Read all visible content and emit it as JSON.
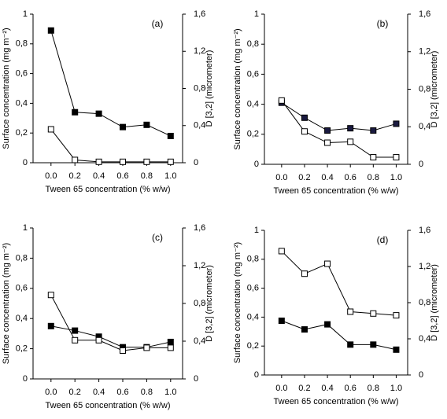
{
  "chart_data": [
    {
      "type": "line",
      "label": "(a)",
      "xlabel": "Tween 65 concentration (% w/w)",
      "ylabel": "Surface concentration (mg m⁻²)",
      "y2label": "D [3,2] (micrometer)",
      "x": [
        0,
        0.2,
        0.4,
        0.6,
        0.8,
        1
      ],
      "series": [
        {
          "color": "#000000",
          "marker_fill": "#000000",
          "axis": "y",
          "values": [
            0.89,
            0.34,
            0.33,
            0.24,
            0.255,
            0.18
          ]
        },
        {
          "color": "#000000",
          "marker_fill": "#ffffff",
          "axis": "y2",
          "values": [
            0.36,
            0.03,
            0.01,
            0.01,
            0.01,
            0.01
          ]
        }
      ],
      "xlim": [
        -0.15,
        1.1
      ],
      "xticks": [
        {
          "value": 0,
          "label": "0.0"
        },
        0.2,
        0.4,
        0.6,
        0.8,
        {
          "value": 1,
          "label": "1.0"
        }
      ],
      "ylim": [
        0,
        1
      ],
      "yticks": [
        0,
        {
          "value": 0.2,
          "label": "0,2"
        },
        {
          "value": 0.4,
          "label": "0,4"
        },
        {
          "value": 0.6,
          "label": "0,6"
        },
        {
          "value": 0.8,
          "label": "0,8"
        },
        1
      ],
      "y2lim": [
        0,
        1.6
      ],
      "y2ticks": [
        0,
        {
          "value": 0.4,
          "label": "0,4"
        },
        {
          "value": 0.8,
          "label": "0,8"
        },
        {
          "value": 1.2,
          "label": "1,2"
        },
        {
          "value": 1.6,
          "label": "1,6"
        }
      ]
    },
    {
      "type": "line",
      "label": "(b)",
      "xlabel": "Tween 65 concentration (% w/w)",
      "ylabel": "Surface concentration (mg m⁻²)",
      "y2label": "D [3,2] (micrometer)",
      "x": [
        0,
        0.2,
        0.4,
        0.6,
        0.8,
        1
      ],
      "series": [
        {
          "color": "#000000",
          "marker_fill": "#1a1a40",
          "axis": "y",
          "values": [
            0.41,
            0.31,
            0.225,
            0.24,
            0.225,
            0.27
          ]
        },
        {
          "color": "#000000",
          "marker_fill": "#ffffff",
          "axis": "y2",
          "values": [
            0.68,
            0.35,
            0.23,
            0.24,
            0.075,
            0.075
          ]
        }
      ],
      "xlim": [
        -0.15,
        1.1
      ],
      "xticks": [
        {
          "value": 0,
          "label": "0.0"
        },
        0.2,
        0.4,
        0.6,
        0.8,
        {
          "value": 1,
          "label": "1.0"
        }
      ],
      "ylim": [
        0,
        1
      ],
      "yticks": [
        0,
        {
          "value": 0.2,
          "label": "0,2"
        },
        {
          "value": 0.4,
          "label": "0,4"
        },
        {
          "value": 0.6,
          "label": "0,6"
        },
        {
          "value": 0.8,
          "label": "0,8"
        },
        1
      ],
      "y2lim": [
        0,
        1.6
      ],
      "y2ticks": [
        0,
        {
          "value": 0.4,
          "label": "0,4"
        },
        {
          "value": 0.8,
          "label": "0,8"
        },
        {
          "value": 1.2,
          "label": "1,2"
        },
        {
          "value": 1.6,
          "label": "1,6"
        }
      ]
    },
    {
      "type": "line",
      "label": "(c)",
      "xlabel": "Tween 65 concentration (% w/w)",
      "ylabel": "Surface concentration (mg m⁻²)",
      "y2label": "D [3,2] (micrometer)",
      "x": [
        0,
        0.2,
        0.4,
        0.6,
        0.8,
        1
      ],
      "series": [
        {
          "color": "#000000",
          "marker_fill": "#000000",
          "axis": "y",
          "values": [
            0.35,
            0.32,
            0.28,
            0.21,
            0.21,
            0.245
          ]
        },
        {
          "color": "#000000",
          "marker_fill": "#ffffff",
          "axis": "y2",
          "values": [
            0.89,
            0.41,
            0.41,
            0.3,
            0.33,
            0.33
          ]
        }
      ],
      "xlim": [
        -0.15,
        1.1
      ],
      "xticks": [
        {
          "value": 0,
          "label": "0.0"
        },
        0.2,
        0.4,
        0.6,
        0.8,
        {
          "value": 1,
          "label": "1.0"
        }
      ],
      "ylim": [
        0,
        1
      ],
      "yticks": [
        0,
        {
          "value": 0.2,
          "label": "0,2"
        },
        {
          "value": 0.4,
          "label": "0,4"
        },
        {
          "value": 0.6,
          "label": "0,6"
        },
        {
          "value": 0.8,
          "label": "0,8"
        },
        1
      ],
      "y2lim": [
        0,
        1.6
      ],
      "y2ticks": [
        0,
        {
          "value": 0.4,
          "label": "0,4"
        },
        {
          "value": 0.8,
          "label": "0,8"
        },
        {
          "value": 1.2,
          "label": "1,2"
        },
        {
          "value": 1.6,
          "label": "1,6"
        }
      ]
    },
    {
      "type": "line",
      "label": "(d)",
      "xlabel": "Tween 65 concentration (% w/w)",
      "ylabel": "Surface concentration (mg m⁻²)",
      "y2label": "D [3,2] (micrometer)",
      "x": [
        0,
        0.2,
        0.4,
        0.6,
        0.8,
        1
      ],
      "series": [
        {
          "color": "#000000",
          "marker_fill": "#000000",
          "axis": "y",
          "values": [
            0.375,
            0.315,
            0.35,
            0.21,
            0.21,
            0.175
          ]
        },
        {
          "color": "#000000",
          "marker_fill": "#ffffff",
          "axis": "y2",
          "values": [
            1.37,
            1.12,
            1.23,
            0.7,
            0.68,
            0.66
          ]
        }
      ],
      "xlim": [
        -0.15,
        1.1
      ],
      "xticks": [
        {
          "value": 0,
          "label": "0.0"
        },
        0.2,
        0.4,
        0.6,
        0.8,
        {
          "value": 1,
          "label": "1.0"
        }
      ],
      "ylim": [
        0,
        1
      ],
      "yticks": [
        0,
        {
          "value": 0.2,
          "label": "0,2"
        },
        {
          "value": 0.4,
          "label": "0,4"
        },
        {
          "value": 0.6,
          "label": "0,6"
        },
        {
          "value": 0.8,
          "label": "0,8"
        },
        1
      ],
      "y2lim": [
        0,
        1.6
      ],
      "y2ticks": [
        0,
        {
          "value": 0.4,
          "label": "0,4"
        },
        {
          "value": 0.8,
          "label": "0,8"
        },
        {
          "value": 1.2,
          "label": "1,2"
        },
        {
          "value": 1.6,
          "label": "1,6"
        }
      ]
    }
  ]
}
